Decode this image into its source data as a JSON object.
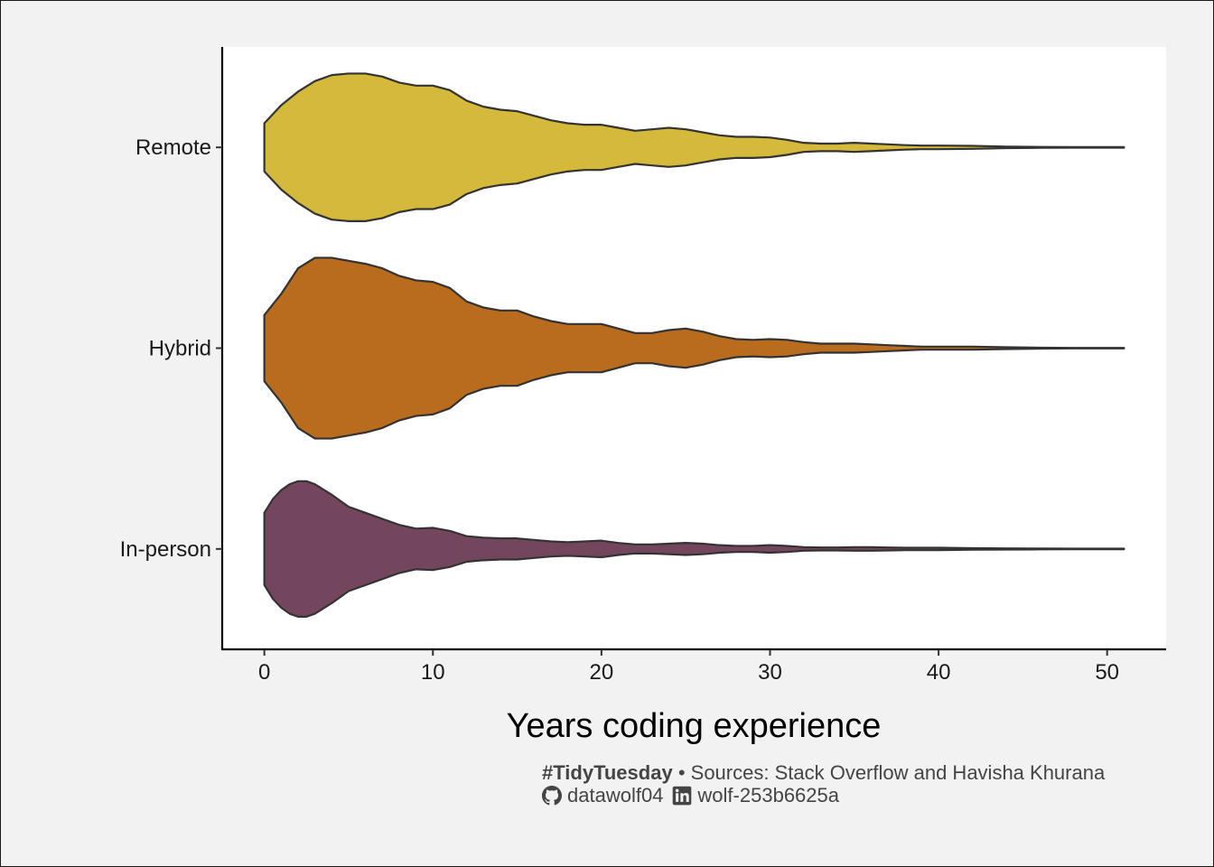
{
  "chart_data": {
    "type": "violin",
    "orientation": "horizontal",
    "title": "",
    "xlabel": "Years coding experience",
    "ylabel": "",
    "xlim": [
      -2.5,
      53.5
    ],
    "xticks": [
      0,
      10,
      20,
      30,
      40,
      50
    ],
    "xtick_labels": [
      "0",
      "10",
      "20",
      "30",
      "40",
      "50"
    ],
    "categories": [
      "Remote",
      "Hybrid",
      "In-person"
    ],
    "grid": false,
    "legend": "none",
    "series": [
      {
        "name": "Remote",
        "color": "#d4b93a",
        "profile": [
          [
            0,
            0.16
          ],
          [
            1,
            0.28
          ],
          [
            2,
            0.37
          ],
          [
            3,
            0.44
          ],
          [
            4,
            0.48
          ],
          [
            5,
            0.49
          ],
          [
            6,
            0.49
          ],
          [
            7,
            0.47
          ],
          [
            8,
            0.43
          ],
          [
            9,
            0.41
          ],
          [
            10,
            0.41
          ],
          [
            11,
            0.38
          ],
          [
            12,
            0.31
          ],
          [
            13,
            0.27
          ],
          [
            14,
            0.25
          ],
          [
            15,
            0.24
          ],
          [
            16,
            0.21
          ],
          [
            17,
            0.18
          ],
          [
            18,
            0.16
          ],
          [
            19,
            0.15
          ],
          [
            20,
            0.15
          ],
          [
            21,
            0.13
          ],
          [
            22,
            0.11
          ],
          [
            23,
            0.12
          ],
          [
            24,
            0.13
          ],
          [
            25,
            0.12
          ],
          [
            26,
            0.1
          ],
          [
            27,
            0.08
          ],
          [
            28,
            0.07
          ],
          [
            29,
            0.07
          ],
          [
            30,
            0.065
          ],
          [
            31,
            0.05
          ],
          [
            32,
            0.03
          ],
          [
            33,
            0.025
          ],
          [
            34,
            0.025
          ],
          [
            35,
            0.03
          ],
          [
            36,
            0.025
          ],
          [
            37,
            0.02
          ],
          [
            38,
            0.015
          ],
          [
            39,
            0.012
          ],
          [
            40,
            0.012
          ],
          [
            42,
            0.01
          ],
          [
            44,
            0.005
          ],
          [
            46,
            0.003
          ],
          [
            48,
            0.002
          ],
          [
            51,
            0.002
          ]
        ]
      },
      {
        "name": "Hybrid",
        "color": "#b96b1e",
        "profile": [
          [
            0,
            0.22
          ],
          [
            1,
            0.36
          ],
          [
            2,
            0.53
          ],
          [
            3,
            0.6
          ],
          [
            4,
            0.6
          ],
          [
            5,
            0.58
          ],
          [
            6,
            0.56
          ],
          [
            7,
            0.53
          ],
          [
            8,
            0.48
          ],
          [
            9,
            0.45
          ],
          [
            10,
            0.44
          ],
          [
            11,
            0.4
          ],
          [
            12,
            0.31
          ],
          [
            13,
            0.27
          ],
          [
            14,
            0.25
          ],
          [
            15,
            0.25
          ],
          [
            16,
            0.21
          ],
          [
            17,
            0.18
          ],
          [
            18,
            0.16
          ],
          [
            19,
            0.16
          ],
          [
            20,
            0.16
          ],
          [
            21,
            0.13
          ],
          [
            22,
            0.1
          ],
          [
            23,
            0.1
          ],
          [
            24,
            0.12
          ],
          [
            25,
            0.13
          ],
          [
            26,
            0.11
          ],
          [
            27,
            0.08
          ],
          [
            28,
            0.06
          ],
          [
            29,
            0.055
          ],
          [
            30,
            0.06
          ],
          [
            31,
            0.055
          ],
          [
            32,
            0.04
          ],
          [
            33,
            0.03
          ],
          [
            34,
            0.03
          ],
          [
            35,
            0.03
          ],
          [
            36,
            0.025
          ],
          [
            37,
            0.02
          ],
          [
            38,
            0.015
          ],
          [
            39,
            0.01
          ],
          [
            40,
            0.01
          ],
          [
            42,
            0.01
          ],
          [
            44,
            0.006
          ],
          [
            46,
            0.003
          ],
          [
            48,
            0.002
          ],
          [
            51,
            0.002
          ]
        ]
      },
      {
        "name": "In-person",
        "color": "#74465e",
        "profile": [
          [
            0,
            0.24
          ],
          [
            0.5,
            0.33
          ],
          [
            1,
            0.39
          ],
          [
            1.5,
            0.43
          ],
          [
            2,
            0.45
          ],
          [
            2.5,
            0.45
          ],
          [
            3,
            0.43
          ],
          [
            4,
            0.36
          ],
          [
            5,
            0.28
          ],
          [
            6,
            0.24
          ],
          [
            7,
            0.2
          ],
          [
            8,
            0.16
          ],
          [
            9,
            0.135
          ],
          [
            10,
            0.14
          ],
          [
            11,
            0.12
          ],
          [
            12,
            0.085
          ],
          [
            13,
            0.075
          ],
          [
            14,
            0.07
          ],
          [
            15,
            0.07
          ],
          [
            16,
            0.06
          ],
          [
            17,
            0.05
          ],
          [
            18,
            0.045
          ],
          [
            19,
            0.05
          ],
          [
            20,
            0.055
          ],
          [
            21,
            0.04
          ],
          [
            22,
            0.03
          ],
          [
            23,
            0.03
          ],
          [
            24,
            0.035
          ],
          [
            25,
            0.04
          ],
          [
            26,
            0.035
          ],
          [
            27,
            0.025
          ],
          [
            28,
            0.02
          ],
          [
            29,
            0.02
          ],
          [
            30,
            0.025
          ],
          [
            31,
            0.02
          ],
          [
            32,
            0.012
          ],
          [
            33,
            0.01
          ],
          [
            34,
            0.01
          ],
          [
            35,
            0.012
          ],
          [
            36,
            0.012
          ],
          [
            37,
            0.01
          ],
          [
            38,
            0.008
          ],
          [
            39,
            0.008
          ],
          [
            40,
            0.008
          ],
          [
            42,
            0.005
          ],
          [
            44,
            0.004
          ],
          [
            46,
            0.003
          ],
          [
            48,
            0.002
          ],
          [
            51,
            0.002
          ]
        ]
      }
    ]
  },
  "caption": {
    "tag": "#TidyTuesday",
    "bullet": "•",
    "sources": "Sources: Stack Overflow and Havisha Khurana",
    "github_icon": "github-icon",
    "github_handle": "datawolf04",
    "linkedin_icon": "linkedin-icon",
    "linkedin_handle": "wolf-253b6625a"
  }
}
